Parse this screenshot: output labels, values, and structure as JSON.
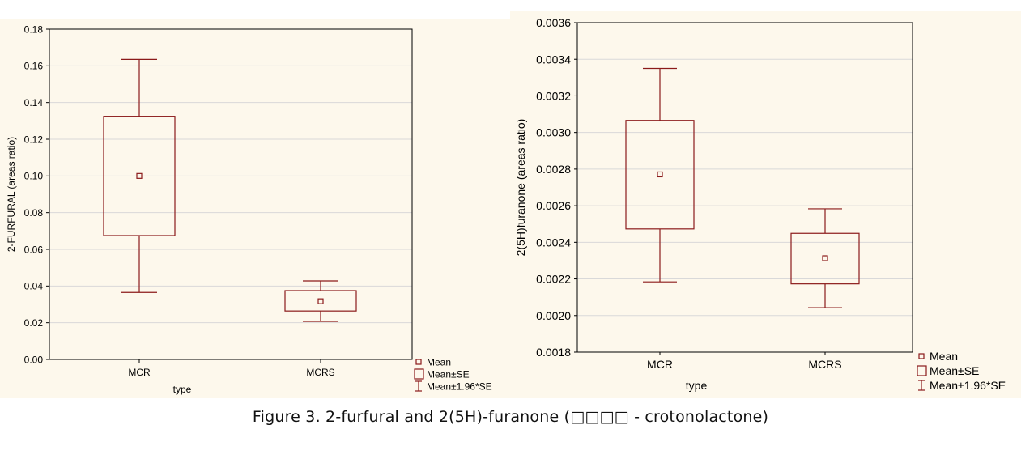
{
  "colors": {
    "box": "#8b1a1a",
    "grid": "#d9d9d9",
    "axis": "#000000",
    "panel": "#fdf8ec"
  },
  "legend": {
    "mean": "Mean",
    "se": "Mean±SE",
    "ci": "Mean±1.96*SE"
  },
  "caption": "Figure 3. 2-furfural and 2(5H)-furanone (□□□□ - crotonolactone)",
  "chart_data": [
    {
      "type": "box",
      "xlabel": "type",
      "ylabel": "2-FURFURAL (areas ratio)",
      "ylim": [
        0,
        0.18
      ],
      "yticks": [
        "0.00",
        "0.02",
        "0.04",
        "0.06",
        "0.08",
        "0.10",
        "0.12",
        "0.14",
        "0.16",
        "0.18"
      ],
      "grid": true,
      "legend_position": "bottom-right",
      "categories": [
        "MCR",
        "MCRS"
      ],
      "mean": [
        0.1,
        0.0317
      ],
      "se_low": [
        0.0675,
        0.0264
      ],
      "se_high": [
        0.1325,
        0.0375
      ],
      "ci_low": [
        0.0365,
        0.0207
      ],
      "ci_high": [
        0.1635,
        0.0428
      ]
    },
    {
      "type": "box",
      "xlabel": "type",
      "ylabel": "2(5H)furanone (areas ratio)",
      "ylim": [
        0.0018,
        0.0036
      ],
      "yticks": [
        "0.0018",
        "0.0020",
        "0.0022",
        "0.0024",
        "0.0026",
        "0.0028",
        "0.0030",
        "0.0032",
        "0.0034",
        "0.0036"
      ],
      "grid": true,
      "legend_position": "bottom-right",
      "categories": [
        "MCR",
        "MCRS"
      ],
      "mean": [
        0.002771,
        0.002313
      ],
      "se_low": [
        0.002473,
        0.002173
      ],
      "se_high": [
        0.003066,
        0.002449
      ],
      "ci_low": [
        0.002184,
        0.002043
      ],
      "ci_high": [
        0.00335,
        0.002583
      ]
    }
  ]
}
